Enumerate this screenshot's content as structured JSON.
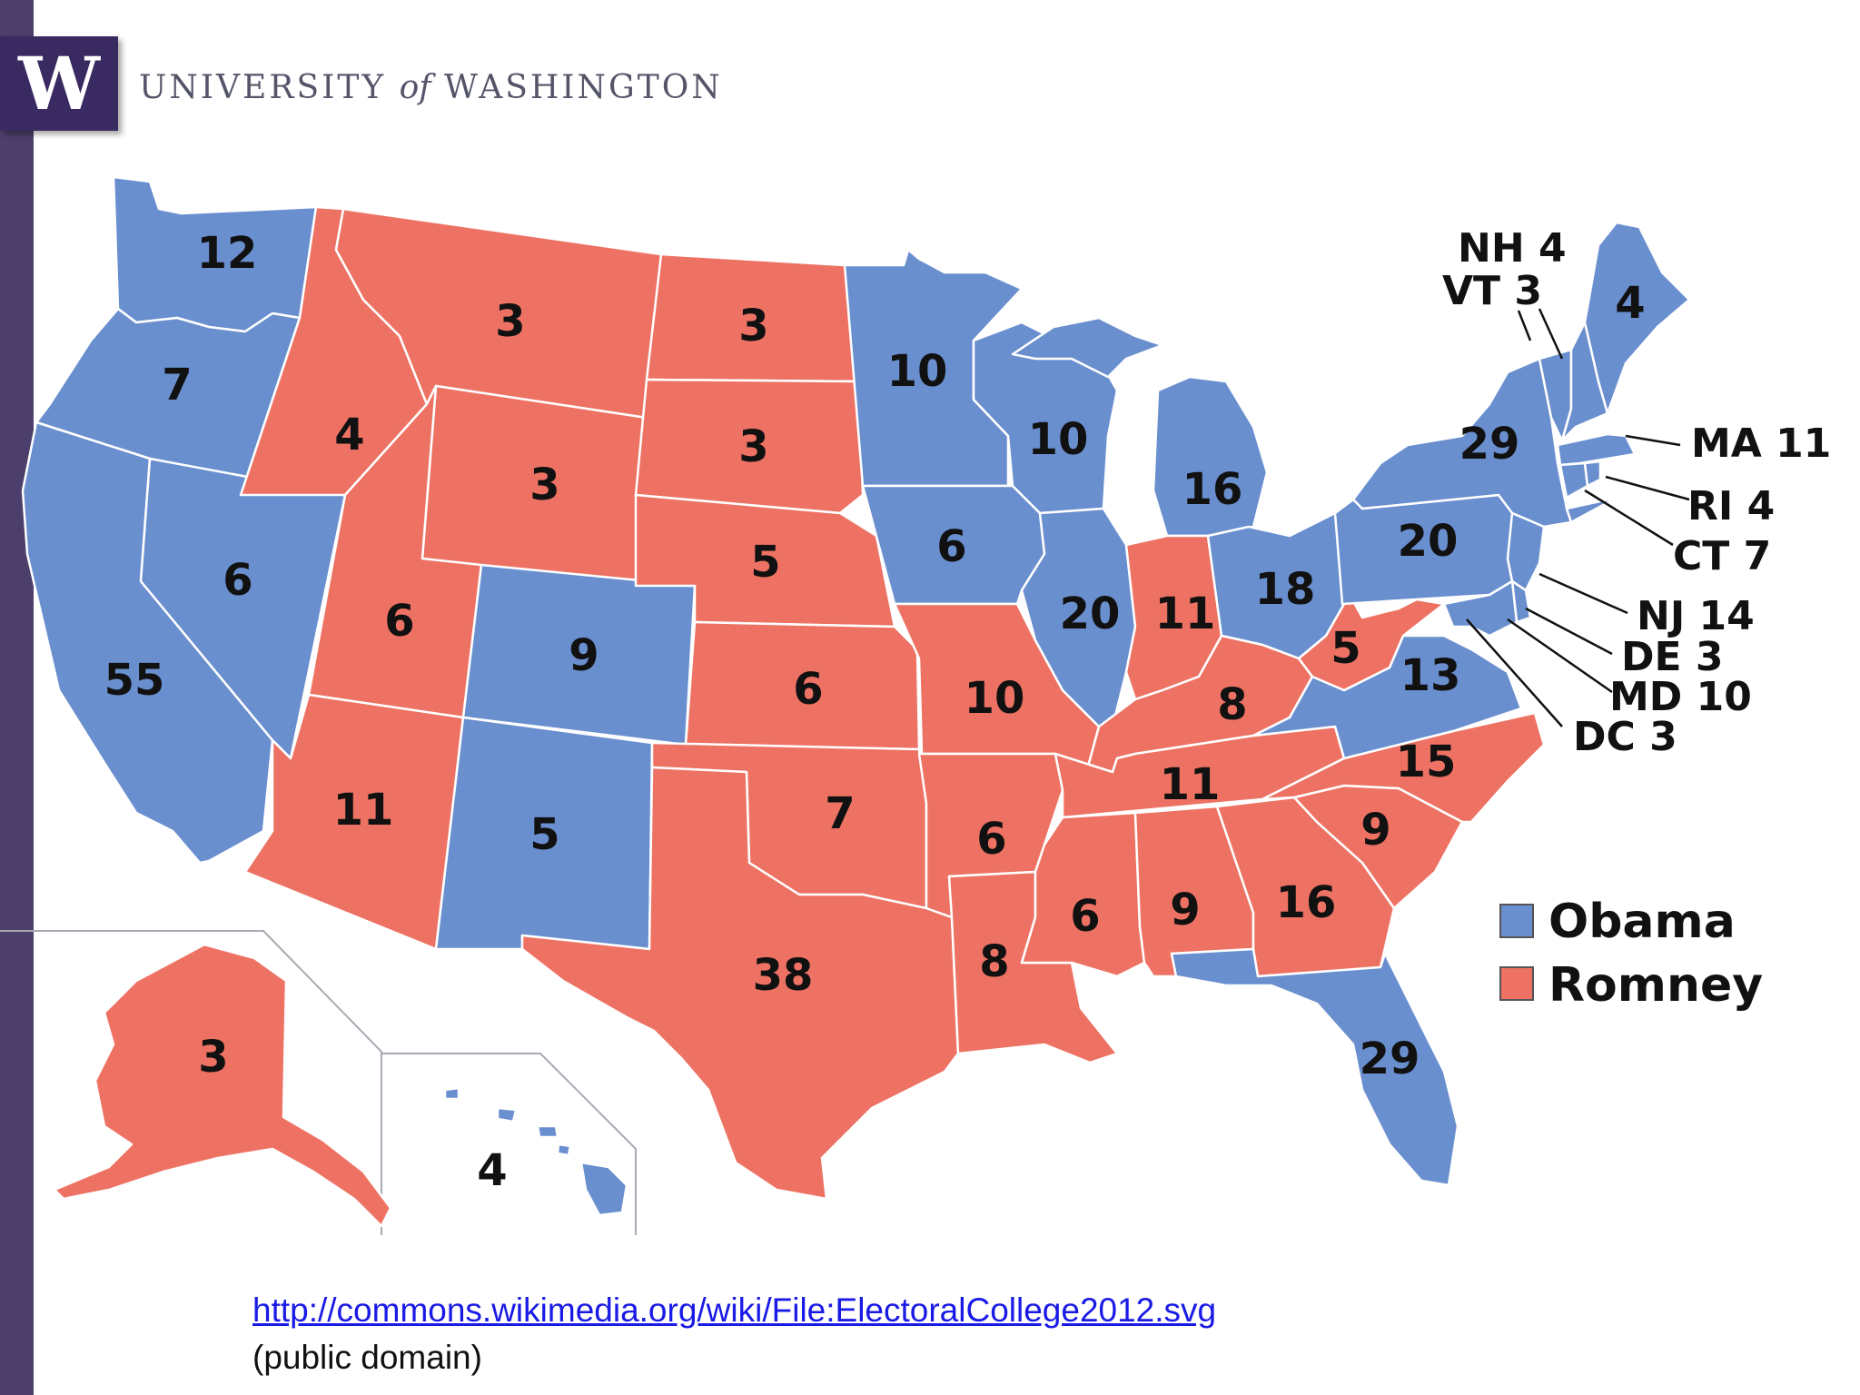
{
  "header": {
    "logo_letter": "W",
    "university_pre": "UNIVERSITY",
    "university_of": "of",
    "university_post": "WASHINGTON"
  },
  "colors": {
    "obama": "#6a8fcf",
    "romney": "#ee7264",
    "border": "#ffffff",
    "header_purple": "#3a2a62",
    "sidebar": "#4d3f6b"
  },
  "legend": {
    "obama": "Obama",
    "romney": "Romney"
  },
  "states": {
    "WA": "12",
    "OR": "7",
    "CA": "55",
    "NV": "6",
    "ID": "4",
    "MT": "3",
    "WY": "3",
    "UT": "6",
    "CO": "9",
    "AZ": "11",
    "NM": "5",
    "ND": "3",
    "SD": "3",
    "NE": "5",
    "KS": "6",
    "OK": "7",
    "TX": "38",
    "MN": "10",
    "IA": "6",
    "MO": "10",
    "AR": "6",
    "LA": "8",
    "WI": "10",
    "IL": "20",
    "MI": "16",
    "IN": "11",
    "OH": "18",
    "KY": "8",
    "TN": "11",
    "MS": "6",
    "AL": "9",
    "GA": "16",
    "FL": "29",
    "SC": "9",
    "NC": "15",
    "VA": "13",
    "WV": "5",
    "PA": "20",
    "NY": "29",
    "ME": "4",
    "AK": "3",
    "HI": "4"
  },
  "small_states": {
    "NH": "NH 4",
    "VT": "VT 3",
    "MA": "MA 11",
    "RI": "RI 4",
    "CT": "CT 7",
    "NJ": "NJ 14",
    "DE": "DE 3",
    "MD": "MD 10",
    "DC": "DC 3"
  },
  "source": {
    "url": "http://commons.wikimedia.org/wiki/File:ElectoralCollege2012.svg",
    "note": "(public domain)"
  }
}
